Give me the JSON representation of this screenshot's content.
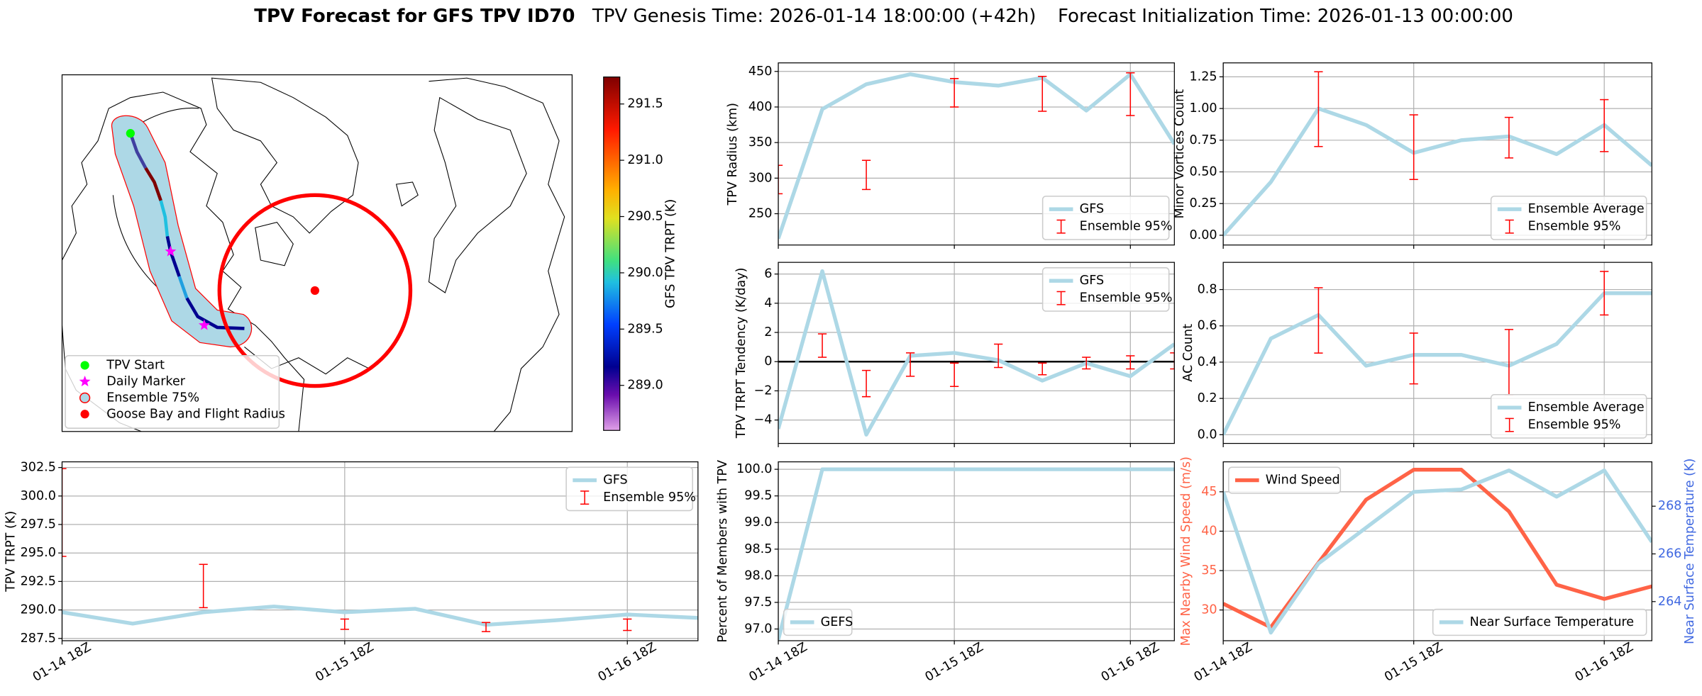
{
  "figure_title": {
    "name": "TPV Forecast for GFS TPV ID70",
    "genesis": "TPV Genesis Time: 2026-01-14 18:00:00 (+42h)",
    "init": "Forecast Initialization Time: 2026-01-13 00:00:00"
  },
  "chart_data": [
    {
      "type": "map",
      "legend_labels": [
        "TPV Start",
        "Daily Marker",
        "Ensemble 75%",
        "Goose Bay and Flight Radius"
      ],
      "colorbar": {
        "label": "GFS TPV TRPT (K)",
        "lim": [
          288.6,
          291.74
        ],
        "ticks": [
          {
            "value": 289,
            "label": "289.0"
          },
          289.5,
          {
            "value": 290,
            "label": "290.0"
          },
          290.5,
          {
            "value": 291,
            "label": "291.0"
          },
          291.5
        ]
      }
    },
    {
      "type": "line",
      "ylabel": "TPV Radius (km)",
      "ylim": [
        206,
        462
      ],
      "yticks": [
        250,
        300,
        350,
        400,
        450
      ],
      "grid": true,
      "legend": "lower right",
      "series": [
        {
          "name": "GFS",
          "color": "#add8e6",
          "values": [
            215,
            397,
            432,
            446,
            435,
            430,
            441,
            395,
            446,
            348
          ]
        }
      ],
      "errorbars": {
        "name": "Ensemble 95%",
        "color": "#ff0000",
        "low": [
          278,
          null,
          284,
          null,
          400,
          null,
          394,
          null,
          388,
          null
        ],
        "high": [
          318,
          null,
          325,
          null,
          440,
          null,
          443,
          null,
          448,
          null
        ]
      }
    },
    {
      "type": "line",
      "ylabel": "Minor Vortices Count",
      "ylim": [
        -0.077,
        1.36
      ],
      "yticks": [
        {
          "value": 0,
          "label": "0.00"
        },
        {
          "value": 0.25,
          "label": "0.25"
        },
        {
          "value": 0.5,
          "label": "0.50"
        },
        {
          "value": 0.75,
          "label": "0.75"
        },
        {
          "value": 1,
          "label": "1.00"
        },
        {
          "value": 1.25,
          "label": "1.25"
        }
      ],
      "grid": true,
      "legend": "lower right",
      "series": [
        {
          "name": "Ensemble Average",
          "color": "#add8e6",
          "values": [
            0.0,
            0.42,
            1.0,
            0.87,
            0.65,
            0.75,
            0.78,
            0.64,
            0.87,
            0.55
          ]
        }
      ],
      "errorbars": {
        "name": "Ensemble 95%",
        "color": "#ff0000",
        "low": [
          null,
          null,
          0.7,
          null,
          0.44,
          null,
          0.61,
          null,
          0.66,
          null
        ],
        "high": [
          null,
          null,
          1.29,
          null,
          0.95,
          null,
          0.93,
          null,
          1.07,
          null
        ]
      }
    },
    {
      "type": "line",
      "ylabel": "TPV TRPT Tendency (K/day)",
      "ylim": [
        -5.6,
        6.8
      ],
      "yticks": [
        {
          "value": -4,
          "label": "−4"
        },
        {
          "value": -2,
          "label": "−2"
        },
        0,
        2,
        4,
        6
      ],
      "grid": true,
      "legend": "upper right",
      "reference_line": {
        "value": 0,
        "color": "#000000"
      },
      "series": [
        {
          "name": "GFS",
          "color": "#add8e6",
          "values": [
            -4.6,
            6.2,
            -5.0,
            0.4,
            0.6,
            0.1,
            -1.3,
            -0.1,
            -1.0,
            1.2
          ]
        }
      ],
      "errorbars": {
        "name": "Ensemble 95%",
        "color": "#ff0000",
        "low": [
          null,
          0.3,
          -2.4,
          -1.0,
          -1.7,
          -0.4,
          -0.9,
          -0.5,
          -0.5,
          -0.5
        ],
        "high": [
          null,
          1.9,
          -0.6,
          0.6,
          -0.1,
          1.2,
          -0.1,
          0.3,
          0.4,
          0.6
        ]
      }
    },
    {
      "type": "line",
      "ylabel": "AC Count",
      "ylim": [
        -0.048,
        0.95
      ],
      "yticks": [
        {
          "value": 0,
          "label": "0.0"
        },
        0.2,
        0.4,
        0.6,
        0.8
      ],
      "grid": true,
      "legend": "lower right",
      "series": [
        {
          "name": "Ensemble Average",
          "color": "#add8e6",
          "values": [
            0.0,
            0.53,
            0.66,
            0.38,
            0.44,
            0.44,
            0.38,
            0.5,
            0.78,
            0.78
          ]
        }
      ],
      "errorbars": {
        "name": "Ensemble 95%",
        "color": "#ff0000",
        "low": [
          null,
          null,
          0.45,
          null,
          0.28,
          null,
          0.22,
          null,
          0.66,
          null
        ],
        "high": [
          null,
          null,
          0.81,
          null,
          0.56,
          null,
          0.58,
          null,
          0.9,
          null
        ]
      }
    },
    {
      "type": "line",
      "ylabel": "TPV TRPT (K)",
      "categories": [
        "01-14 18Z",
        null,
        null,
        null,
        "01-15 18Z",
        null,
        null,
        null,
        "01-16 18Z",
        null
      ],
      "ylim": [
        287.3,
        303.0
      ],
      "yticks": [
        287.5,
        {
          "value": 290,
          "label": "290.0"
        },
        292.5,
        {
          "value": 295,
          "label": "295.0"
        },
        297.5,
        {
          "value": 300,
          "label": "300.0"
        },
        302.5
      ],
      "grid": true,
      "legend": "upper right",
      "series": [
        {
          "name": "GFS",
          "color": "#add8e6",
          "values": [
            289.8,
            288.8,
            289.8,
            290.3,
            289.8,
            290.1,
            288.7,
            289.1,
            289.6,
            289.3
          ]
        }
      ],
      "errorbars": {
        "name": "Ensemble 95%",
        "color": "#ff0000",
        "low": [
          294.7,
          null,
          290.2,
          null,
          288.3,
          null,
          288.1,
          null,
          288.2,
          null
        ],
        "high": [
          302.4,
          null,
          294.0,
          null,
          289.2,
          null,
          288.9,
          null,
          289.2,
          null
        ]
      }
    },
    {
      "type": "line",
      "ylabel": "Percent of Members with TPV",
      "categories": [
        "01-14 18Z",
        null,
        null,
        null,
        "01-15 18Z",
        null,
        null,
        null,
        "01-16 18Z",
        null
      ],
      "ylim": [
        96.78,
        100.14
      ],
      "yticks": [
        {
          "value": 97,
          "label": "97.0"
        },
        97.5,
        {
          "value": 98,
          "label": "98.0"
        },
        98.5,
        {
          "value": 99,
          "label": "99.0"
        },
        99.5,
        {
          "value": 100,
          "label": "100.0"
        }
      ],
      "grid": true,
      "legend": "lower left",
      "series": [
        {
          "name": "GEFS",
          "color": "#add8e6",
          "values": [
            96.8,
            100,
            100,
            100,
            100,
            100,
            100,
            100,
            100,
            100
          ]
        }
      ]
    },
    {
      "type": "line",
      "ylabel": "Max Nearby Wind Speed (m/s)",
      "ylabel_color": "#ff6347",
      "y2label": "Near Surface Temperature (K)",
      "y2label_color": "#4169e1",
      "categories": [
        "01-14 18Z",
        null,
        null,
        null,
        "01-15 18Z",
        null,
        null,
        null,
        "01-16 18Z",
        null
      ],
      "ylim": [
        26.1,
        48.8
      ],
      "yticks": [
        30,
        35,
        40,
        45
      ],
      "y2lim": [
        262.36,
        269.86
      ],
      "y2ticks": [
        264,
        266,
        268
      ],
      "grid": true,
      "series": [
        {
          "name": "Wind Speed",
          "color": "#ff6347",
          "legend": "upper left",
          "values": [
            30.8,
            27.8,
            36.0,
            44.0,
            47.8,
            47.8,
            42.5,
            33.2,
            31.4,
            33.0
          ]
        },
        {
          "name": "Near Surface Temperature",
          "color": "#add8e6",
          "axis": "y2",
          "legend": "lower right",
          "values": [
            268.6,
            262.7,
            265.6,
            267.1,
            268.6,
            268.7,
            269.5,
            268.4,
            269.5,
            266.5
          ]
        }
      ]
    }
  ]
}
